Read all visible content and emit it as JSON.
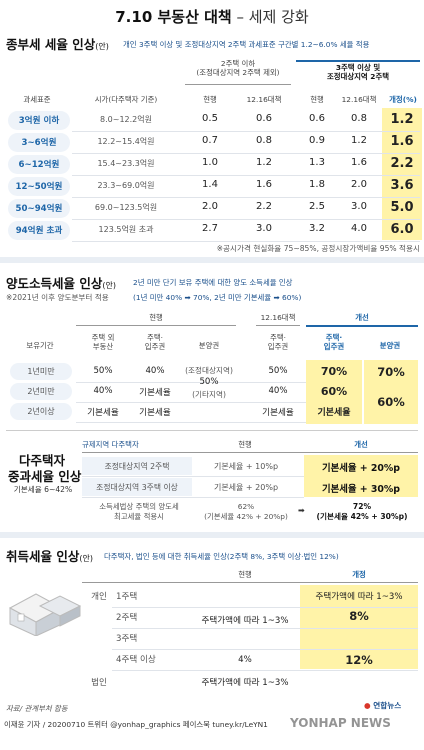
{
  "title": {
    "main": "7.10 부동산 대책",
    "sub": " – 세제 강화"
  },
  "s1": {
    "heading": "종부세 세율 인상",
    "heading_small": "(안)",
    "note": "개인 3주택 이상 및 조정대상지역 2주택 과세표준 구간별 1.2~6.0% 세율 적용",
    "group1": "2주택 이하",
    "group1_sub": "(조정대상지역 2주택 제외)",
    "group2_l1": "3주택 이상 및",
    "group2_l2": "조정대상지역 2주택",
    "col_tax": "과세표준",
    "col_price": "시가(다주택자 기준)",
    "col_cur": "현행",
    "col_1216": "12.16대책",
    "col_cur2": "현행",
    "col_1216b": "12.16대책",
    "col_new": "개정(%)",
    "rows": [
      {
        "base": "3억원 이하",
        "price": "8.0~12.2억원",
        "a": "0.5",
        "b": "0.6",
        "c": "0.6",
        "d": "0.8",
        "e": "1.2"
      },
      {
        "base": "3~6억원",
        "price": "12.2~15.4억원",
        "a": "0.7",
        "b": "0.8",
        "c": "0.9",
        "d": "1.2",
        "e": "1.6"
      },
      {
        "base": "6~12억원",
        "price": "15.4~23.3억원",
        "a": "1.0",
        "b": "1.2",
        "c": "1.3",
        "d": "1.6",
        "e": "2.2"
      },
      {
        "base": "12~50억원",
        "price": "23.3~69.0억원",
        "a": "1.4",
        "b": "1.6",
        "c": "1.8",
        "d": "2.0",
        "e": "3.6"
      },
      {
        "base": "50~94억원",
        "price": "69.0~123.5억원",
        "a": "2.0",
        "b": "2.2",
        "c": "2.5",
        "d": "3.0",
        "e": "5.0"
      },
      {
        "base": "94억원 초과",
        "price": "123.5억원 초과",
        "a": "2.7",
        "b": "3.0",
        "c": "3.2",
        "d": "4.0",
        "e": "6.0"
      }
    ],
    "footnote": "※공시가격 현실화율 75~85%, 공정시장가액비율 95% 적용시"
  },
  "s2": {
    "heading": "양도소득세율 인상",
    "heading_small": "(안)",
    "note1": "2년 미만 단기 보유 주택에 대한 양도 소득세율 인상",
    "note2": "(1년 미만 40% ➡ 70%, 2년 미만 기본세율 ➡ 60%)",
    "note_left": "※2021년 이후 양도분부터 적용",
    "h_cur": "현행",
    "h_1216": "12.16대책",
    "h_new": "개선",
    "h_period": "보유기간",
    "h_house_other_l1": "주택 외",
    "h_house_other_l2": "부동산",
    "h_house_l1": "주택·",
    "h_house_l2": "입주권",
    "h_presale": "분양권",
    "h_house2_l1": "주택·",
    "h_house2_l2": "입주권",
    "h_new_house_l1": "주택·",
    "h_new_house_l2": "입주권",
    "h_new_presale": "분양권",
    "rows": [
      {
        "period": "1년미만",
        "other": "50%",
        "house": "40%",
        "h1216": "50%",
        "nh": "70%",
        "np": "70%"
      },
      {
        "period": "2년미만",
        "other": "40%",
        "house": "기본세율",
        "h1216": "40%",
        "nh": "60%"
      },
      {
        "period": "2년이상",
        "other": "기본세율",
        "house": "기본세율",
        "h1216": "기본세율",
        "nh": "기본세율"
      }
    ],
    "presale_l1": "(조정대상지역)",
    "presale_l2": "50%",
    "presale_l3": "(기타지역)",
    "np_merged": "60%"
  },
  "s3": {
    "heading_l1": "다주택자",
    "heading_l2": "중과세율 인상",
    "heading_sub": "기본세율 6~42%",
    "h_target": "규제지역 다주택자",
    "h_cur": "현행",
    "h_new": "개선",
    "rows": [
      {
        "target": "조정대상지역 2주택",
        "cur": "기본세율 + 10%p",
        "new": "기본세율 + 20%p"
      },
      {
        "target": "조정대상지역 3주택 이상",
        "cur": "기본세율 + 20%p",
        "new": "기본세율 + 30%p"
      }
    ],
    "last_l1": "소득세법상 주택의 양도세",
    "last_l2": "최고세율 적용시",
    "last_cur_l1": "62%",
    "last_cur_l2": "(기본세율 42% + 20%p)",
    "last_new_l1": "72%",
    "last_new_l2": "(기본세율 42% + 30%p)"
  },
  "s4": {
    "heading": "취득세율 인상",
    "heading_small": "(안)",
    "note": "다주택자, 법인 등에 대한 취득세율 인상(2주택 8%, 3주택 이상·법인 12%)",
    "h_cur": "현행",
    "h_new": "개정",
    "cat_personal": "개인",
    "cat_corp": "법인",
    "rows": [
      "1주택",
      "2주택",
      "3주택",
      "4주택 이상"
    ],
    "cur_merged": "주택가액에 따라 1~3%",
    "cur_4": "4%",
    "cur_corp": "주택가액에 따라 1~3%",
    "new_1": "주택가액에 따라 1~3%",
    "new_2": "8%",
    "new_3": "12%"
  },
  "footer": {
    "source": "자료/ 관계부처 합동",
    "credit": "이재윤 기자 / 20200710  트위터 @yonhap_graphics  페이스북 tuney.kr/LeYN1",
    "logo": "연합뉴스",
    "watermark": "YONHAP NEWS"
  },
  "colors": {
    "accent_blue": "#1e66a8",
    "highlight_yellow": "#fff3a8",
    "row_bg": "#eef3f9",
    "divider": "#e9eef4"
  }
}
